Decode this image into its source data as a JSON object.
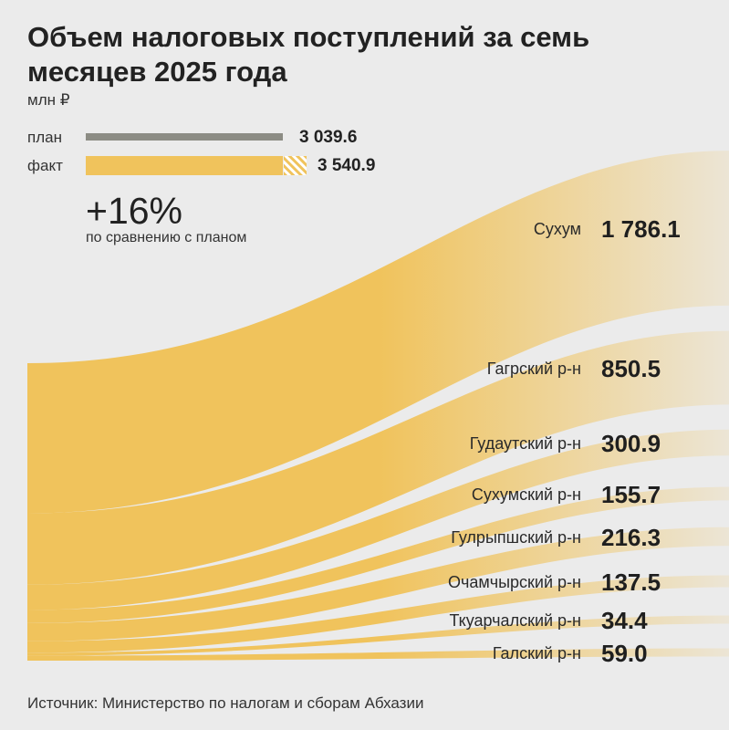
{
  "header": {
    "title": "Объем налоговых поступлений за семь месяцев 2025 года",
    "unit": "млн ₽"
  },
  "legend": {
    "plan_label": "план",
    "plan_value": "3 039.6",
    "fact_label": "факт",
    "fact_value": "3 540.9"
  },
  "comparison": {
    "percent": "+16%",
    "description": "по сравнению с планом"
  },
  "source": "Источник: Министерство по налогам и сборам Абхазии",
  "colors": {
    "background": "#ebebeb",
    "accent": "#f0c35c",
    "plan": "#8c8c84"
  },
  "chart_data": {
    "type": "sankey",
    "title": "Объем налоговых поступлений за семь месяцев 2025 года",
    "unit": "млн ₽",
    "totals": {
      "plan": 3039.6,
      "fact": 3540.9
    },
    "regions": [
      {
        "name": "Сухум",
        "value": 1786.1,
        "label": "1 786.1"
      },
      {
        "name": "Гагрский р-н",
        "value": 850.5,
        "label": "850.5"
      },
      {
        "name": "Гудаутский р-н",
        "value": 300.9,
        "label": "300.9"
      },
      {
        "name": "Сухумский р-н",
        "value": 155.7,
        "label": "155.7"
      },
      {
        "name": "Гулрыпшский р-н",
        "value": 216.3,
        "label": "216.3"
      },
      {
        "name": "Очамчырский р-н",
        "value": 137.5,
        "label": "137.5"
      },
      {
        "name": "Ткуарчалский р-н",
        "value": 34.4,
        "label": "34.4"
      },
      {
        "name": "Галский р-н",
        "value": 59.0,
        "label": "59.0"
      }
    ]
  }
}
